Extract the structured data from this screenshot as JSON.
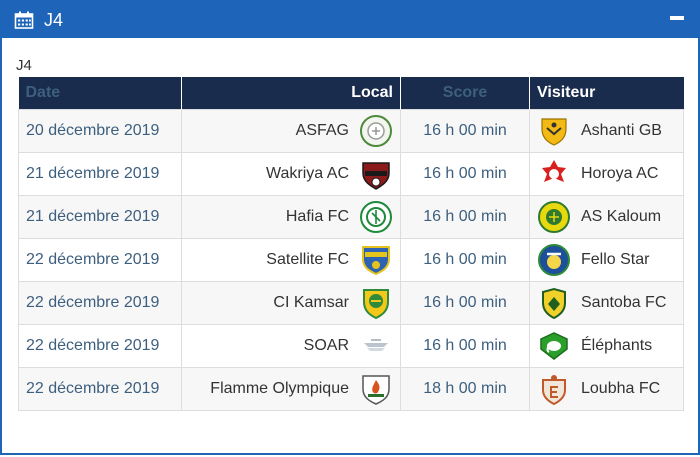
{
  "panel": {
    "title": "J4"
  },
  "caption": "J4",
  "columns": {
    "date": "Date",
    "local": "Local",
    "score": "Score",
    "visiteur": "Visiteur"
  },
  "colors": {
    "header": "#1e64b8",
    "table_head": "#1a2c4e"
  },
  "matches": [
    {
      "date": "20 décembre 2019",
      "local": "ASFAG",
      "score": "16 h 00 min",
      "visiteur": "Ashanti GB",
      "local_logo": "asfag-crest-icon",
      "visitor_logo": "ashanti-gb-crest-icon"
    },
    {
      "date": "21 décembre 2019",
      "local": "Wakriya AC",
      "score": "16 h 00 min",
      "visiteur": "Horoya AC",
      "local_logo": "wakriya-ac-crest-icon",
      "visitor_logo": "horoya-ac-crest-icon"
    },
    {
      "date": "21 décembre 2019",
      "local": "Hafia FC",
      "score": "16 h 00 min",
      "visiteur": "AS Kaloum",
      "local_logo": "hafia-fc-crest-icon",
      "visitor_logo": "as-kaloum-crest-icon"
    },
    {
      "date": "22 décembre 2019",
      "local": "Satellite FC",
      "score": "16 h 00 min",
      "visiteur": "Fello Star",
      "local_logo": "satellite-fc-crest-icon",
      "visitor_logo": "fello-star-crest-icon"
    },
    {
      "date": "22 décembre 2019",
      "local": "CI Kamsar",
      "score": "16 h 00 min",
      "visiteur": "Santoba FC",
      "local_logo": "ci-kamsar-crest-icon",
      "visitor_logo": "santoba-fc-crest-icon"
    },
    {
      "date": "22 décembre 2019",
      "local": "SOAR",
      "score": "16 h 00 min",
      "visiteur": "Éléphants",
      "local_logo": "soar-crest-icon",
      "visitor_logo": "elephants-crest-icon"
    },
    {
      "date": "22 décembre 2019",
      "local": "Flamme Olympique",
      "score": "18 h 00 min",
      "visiteur": "Loubha FC",
      "local_logo": "flamme-olympique-crest-icon",
      "visitor_logo": "loubha-fc-crest-icon"
    }
  ]
}
